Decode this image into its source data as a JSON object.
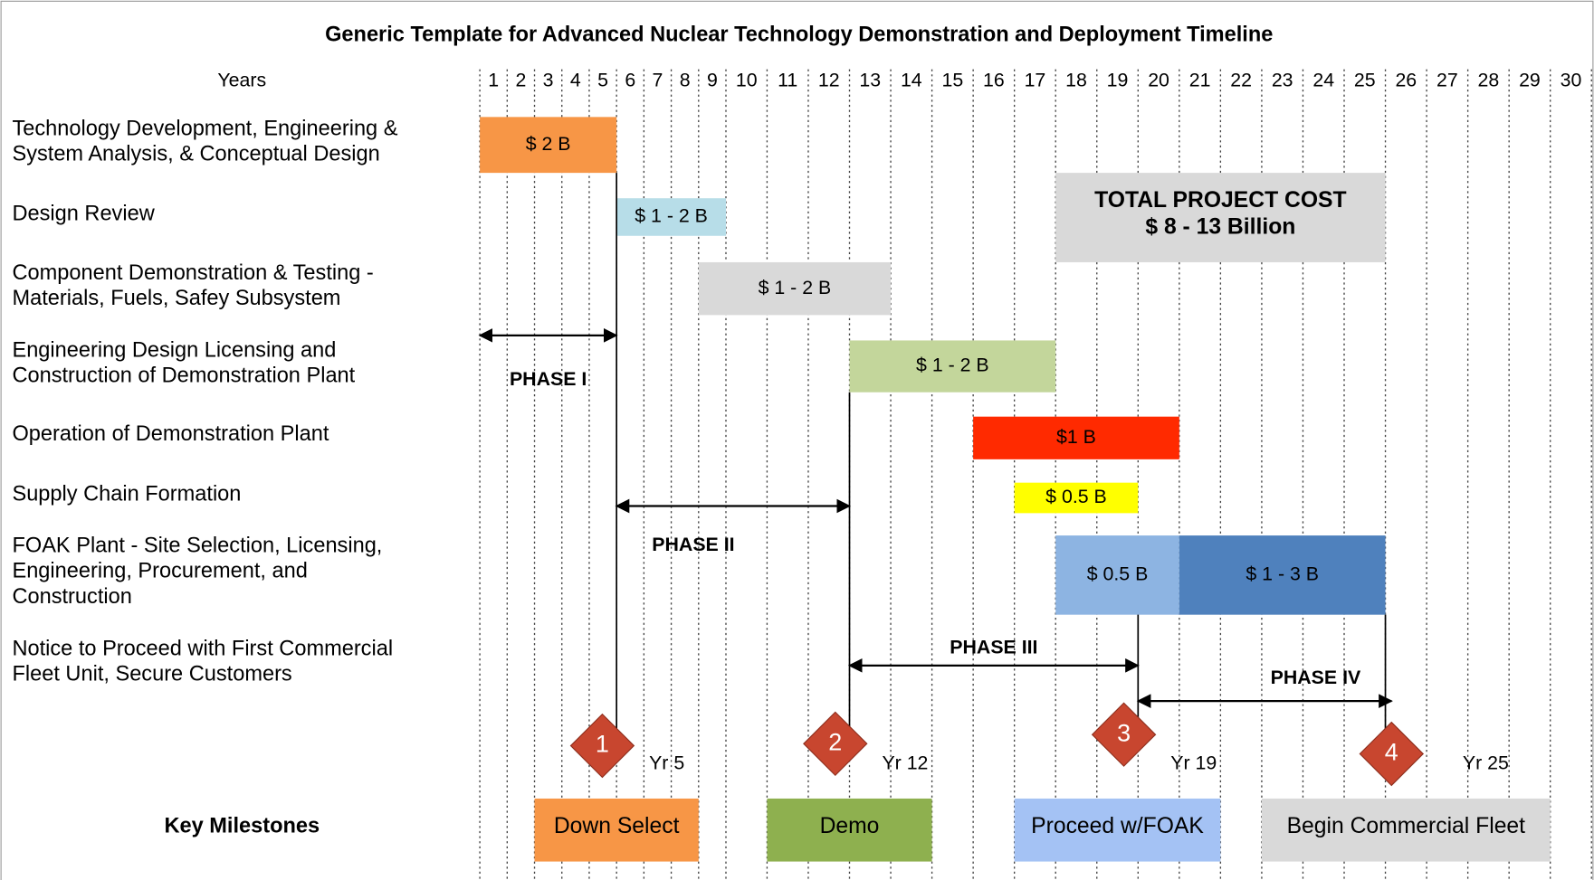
{
  "title": "Generic Template for Advanced Nuclear Technology Demonstration and Deployment Timeline",
  "years_label": "Years",
  "years": [
    1,
    2,
    3,
    4,
    5,
    6,
    7,
    8,
    9,
    10,
    11,
    12,
    13,
    14,
    15,
    16,
    17,
    18,
    19,
    20,
    21,
    22,
    23,
    24,
    25,
    26,
    27,
    28,
    29,
    30
  ],
  "tasks": [
    {
      "label": [
        "Technology Development, Engineering &",
        "System Analysis, &  Conceptual Design"
      ],
      "bars": [
        {
          "start": 0,
          "end": 5,
          "label": "$ 2 B",
          "color": "#f79646"
        }
      ]
    },
    {
      "label": [
        "Design Review"
      ],
      "bars": [
        {
          "start": 5,
          "end": 9,
          "label": "$ 1 - 2 B",
          "color": "#b7dde8"
        }
      ]
    },
    {
      "label": [
        "Component Demonstration & Testing -",
        "Materials, Fuels, Safey Subsystem"
      ],
      "bars": [
        {
          "start": 8,
          "end": 13,
          "label": "$ 1 - 2 B",
          "color": "#d9d9d9"
        }
      ]
    },
    {
      "label": [
        "Engineering Design Licensing and",
        "Construction of Demonstration Plant"
      ],
      "bars": [
        {
          "start": 12,
          "end": 17,
          "label": "$ 1 - 2 B",
          "color": "#c3d69b"
        }
      ]
    },
    {
      "label": [
        "Operation of Demonstration Plant"
      ],
      "bars": [
        {
          "start": 15,
          "end": 20,
          "label": "$1 B",
          "color": "#ff2a00"
        }
      ]
    },
    {
      "label": [
        "Supply Chain Formation"
      ],
      "bars": [
        {
          "start": 16,
          "end": 19,
          "label": "$ 0.5 B",
          "color": "#ffff00"
        }
      ]
    },
    {
      "label": [
        "FOAK Plant - Site Selection, Licensing,",
        "Engineering, Procurement, and",
        "Construction"
      ],
      "bars": [
        {
          "start": 17,
          "end": 20,
          "label": "$ 0.5 B",
          "color": "#8db4e2"
        },
        {
          "start": 20,
          "end": 25,
          "label": "$ 1 - 3 B",
          "color": "#4f81bd"
        }
      ]
    },
    {
      "label": [
        "Notice to Proceed with First Commercial",
        "Fleet Unit, Secure Customers"
      ],
      "bars": []
    }
  ],
  "total_cost": {
    "lines": [
      "TOTAL PROJECT COST",
      "$ 8 - 13 Billion"
    ],
    "start": 17,
    "end": 25,
    "color": "#d9d9d9"
  },
  "phases": [
    {
      "label": "PHASE I",
      "start": 0,
      "end": 5
    },
    {
      "label": "PHASE II",
      "start": 5,
      "end": 12
    },
    {
      "label": "PHASE III",
      "start": 12,
      "end": 19
    },
    {
      "label": "PHASE IV",
      "start": 19,
      "end": 25
    }
  ],
  "milestones_label": "Key Milestones",
  "milestones": [
    {
      "number": "1",
      "year": 5,
      "year_label": "Yr 5",
      "name": "Down Select",
      "color": "#f79646"
    },
    {
      "number": "2",
      "year": 12,
      "year_label": "Yr 12",
      "name": "Demo",
      "color": "#8eb04f"
    },
    {
      "number": "3",
      "year": 19,
      "year_label": "Yr 19",
      "name": "Proceed w/FOAK",
      "color": "#a4c2f4"
    },
    {
      "number": "4",
      "year": 25,
      "year_label": "Yr 25",
      "name": "Begin Commercial Fleet",
      "color": "#d9d9d9"
    }
  ]
}
